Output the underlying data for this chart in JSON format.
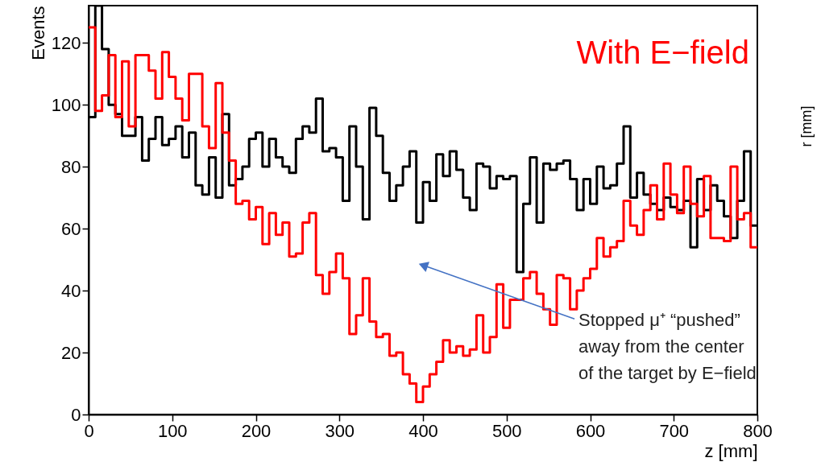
{
  "chart_data": {
    "type": "histogram",
    "xlabel": "z [mm]",
    "ylabel": "Events",
    "bins": [
      0,
      8,
      16,
      24,
      32,
      40,
      48,
      56,
      64,
      72,
      80,
      88,
      96,
      104,
      112,
      120,
      128,
      136,
      144,
      152,
      160,
      168,
      176,
      184,
      192,
      200,
      208,
      216,
      224,
      232,
      240,
      248,
      256,
      264,
      272,
      280,
      288,
      296,
      304,
      312,
      320,
      328,
      336,
      344,
      352,
      360,
      368,
      376,
      384,
      392,
      400,
      408,
      416,
      424,
      432,
      440,
      448,
      456,
      464,
      472,
      480,
      488,
      496,
      504,
      512,
      520,
      528,
      536,
      544,
      552,
      560,
      568,
      576,
      584,
      592,
      600,
      608,
      616,
      624,
      632,
      640,
      648,
      656,
      664,
      672,
      680,
      688,
      696,
      704,
      712,
      720,
      728,
      736,
      744,
      752,
      760,
      768,
      776,
      784,
      792,
      800
    ],
    "series": [
      {
        "color": "#000000",
        "values": [
          96,
          132,
          118,
          100,
          97,
          90,
          90,
          96,
          82,
          89,
          96,
          87,
          89,
          93,
          83,
          91,
          74,
          71,
          83,
          70,
          97,
          74,
          76,
          80,
          89,
          91,
          80,
          89,
          83,
          80,
          78,
          89,
          93,
          91,
          102,
          85,
          86,
          83,
          69,
          93,
          80,
          63,
          99,
          90,
          78,
          69,
          74,
          80,
          85,
          62,
          75,
          69,
          84,
          77,
          85,
          79,
          70,
          66,
          81,
          80,
          73,
          77,
          76,
          77,
          46,
          68,
          83,
          62,
          81,
          79,
          81,
          82,
          76,
          66,
          76,
          68,
          80,
          73,
          74,
          81,
          93,
          70,
          78,
          71,
          68,
          66,
          70,
          67,
          66,
          69,
          54,
          76,
          66,
          74,
          69,
          64,
          57,
          69,
          85,
          61
        ]
      },
      {
        "name": "With E−field",
        "color": "#ff0000",
        "values": [
          125,
          98,
          103,
          116,
          96,
          114,
          93,
          116,
          116,
          111,
          102,
          117,
          109,
          102,
          95,
          110,
          110,
          93,
          86,
          107,
          91,
          82,
          68,
          69,
          63,
          67,
          55,
          65,
          58,
          62,
          51,
          52,
          62,
          65,
          45,
          39,
          46,
          52,
          44,
          26,
          32,
          44,
          30,
          25,
          26,
          19,
          20,
          13,
          10,
          4,
          9,
          13,
          17,
          24,
          20,
          22,
          19,
          21,
          32,
          20,
          25,
          42,
          28,
          37,
          37,
          44,
          46,
          39,
          34,
          29,
          45,
          44,
          34,
          40,
          44,
          47,
          57,
          51,
          54,
          56,
          69,
          61,
          58,
          66,
          74,
          63,
          81,
          71,
          65,
          80,
          68,
          64,
          77,
          57,
          57,
          56,
          80,
          63,
          65,
          54
        ]
      }
    ],
    "xlim": [
      0,
      800
    ],
    "xticks": [
      0,
      100,
      200,
      300,
      400,
      500,
      600,
      700,
      800
    ],
    "ylim": [
      0,
      132
    ],
    "yticks": [
      0,
      20,
      40,
      60,
      80,
      100,
      120
    ],
    "legend": "top right",
    "grid": false,
    "annotations": [
      {
        "text": "Stopped μ⁺ “pushed” away from the center of the target by E−field",
        "x": 402,
        "y": 48
      },
      "r [mm]"
    ]
  }
}
